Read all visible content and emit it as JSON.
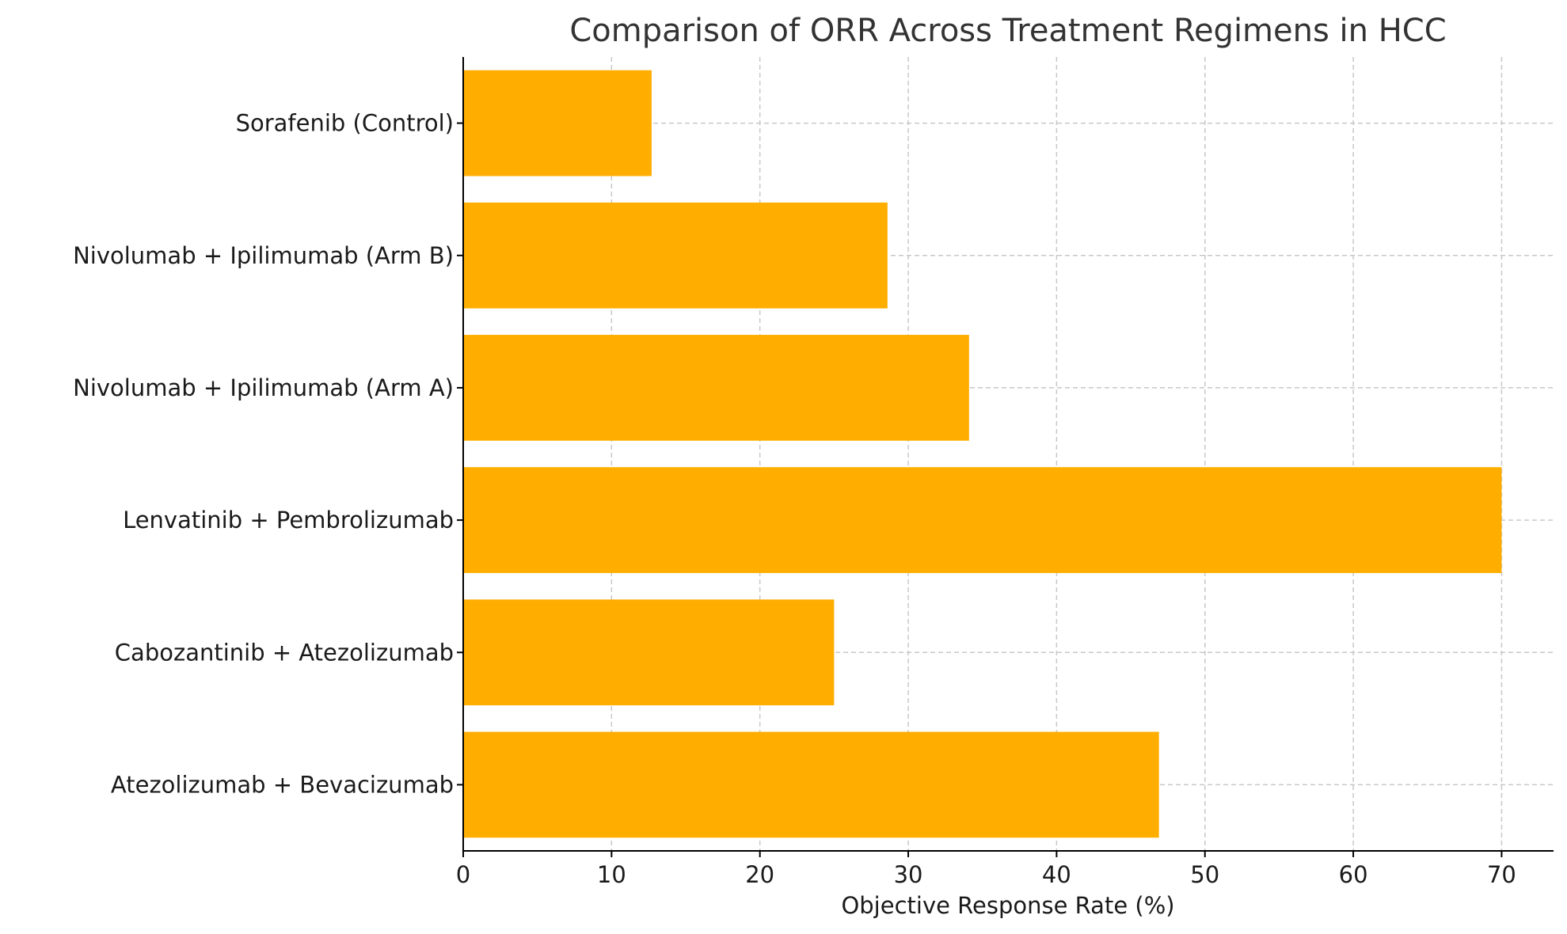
{
  "chart_data": {
    "type": "bar",
    "orientation": "horizontal",
    "title": "Comparison of ORR Across Treatment Regimens in HCC",
    "xlabel": "Objective Response Rate (%)",
    "ylabel": "",
    "categories": [
      "Atezolizumab + Bevacizumab",
      "Cabozantinib + Atezolizumab",
      "Lenvatinib + Pembrolizumab",
      "Nivolumab + Ipilimumab (Arm A)",
      "Nivolumab + Ipilimumab (Arm B)",
      "Sorafenib (Control)"
    ],
    "values": [
      46.9,
      25.0,
      70.0,
      34.1,
      28.6,
      12.7
    ],
    "xlim": [
      0,
      73.5
    ],
    "xticks": [
      0,
      10,
      20,
      30,
      40,
      50,
      60,
      70
    ],
    "grid": true,
    "bar_color": "#FFAE00"
  }
}
